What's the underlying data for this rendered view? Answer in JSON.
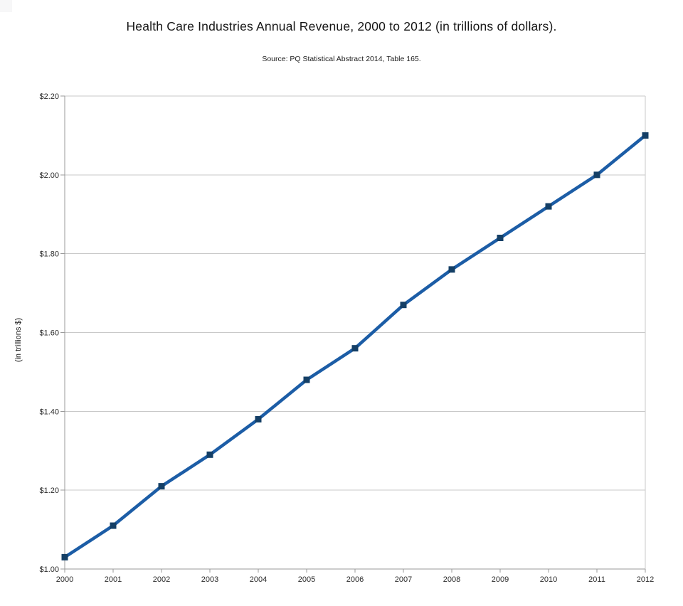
{
  "chart_data": {
    "type": "line",
    "title": "Health Care Industries Annual Revenue, 2000 to 2012 (in trillions of dollars).",
    "subtitle": "Source: PQ Statistical Abstract 2014, Table 165.",
    "xlabel": "",
    "ylabel": "(in trillions $)",
    "categories": [
      "2000",
      "2001",
      "2002",
      "2003",
      "2004",
      "2005",
      "2006",
      "2007",
      "2008",
      "2009",
      "2010",
      "2011",
      "2012"
    ],
    "values": [
      1.03,
      1.11,
      1.21,
      1.29,
      1.38,
      1.48,
      1.56,
      1.67,
      1.76,
      1.84,
      1.92,
      2.0,
      2.1
    ],
    "ylim": [
      1.0,
      2.2
    ],
    "y_tick_step": 0.2,
    "y_tick_labels": [
      "$1.00",
      "$1.20",
      "$1.40",
      "$1.60",
      "$1.80",
      "$2.00",
      "$2.20"
    ],
    "grid": "horizontal",
    "legend": "none",
    "marker_shape": "square",
    "colors": {
      "line": "#1c5da6",
      "marker": "#143f66",
      "gridline": "#c9c9c9",
      "axis": "#9a9a9a",
      "tick_text": "#2b2b2b"
    }
  }
}
